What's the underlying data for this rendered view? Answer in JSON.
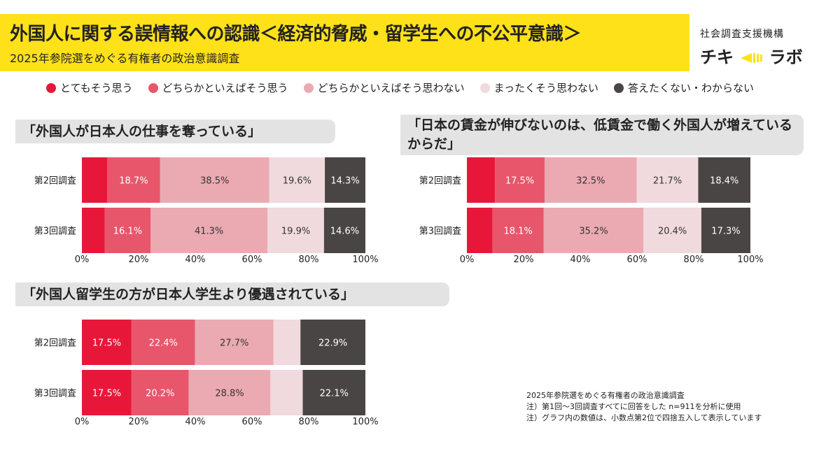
{
  "header": {
    "title": "外国人に関する誤情報への認識＜経済的脅威・留学生への不公平意識＞",
    "subtitle": "2025年参院選をめぐる有権者の政治意識調査"
  },
  "org": {
    "name": "社会調査支援機構",
    "brand_left": "チキ",
    "brand_right": "ラボ"
  },
  "colors": [
    "#e8173a",
    "#e8566b",
    "#ebaab2",
    "#f0dadd",
    "#4a4545"
  ],
  "legend": [
    "とてもそう思う",
    "どちらかといえばそう思う",
    "どちらかといえばそう思わない",
    "まったくそう思わない",
    "答えたくない・わからない"
  ],
  "chart_data": [
    {
      "type": "bar",
      "orientation": "horizontal",
      "stacked": true,
      "title": "「外国人が日本人の仕事を奪っている」",
      "categories": [
        "第2回調査",
        "第3回調査"
      ],
      "series": [
        {
          "name": "とてもそう思う",
          "values": [
            8.9,
            8.1
          ],
          "labels": [
            "",
            ""
          ]
        },
        {
          "name": "どちらかといえばそう思う",
          "values": [
            18.7,
            16.1
          ],
          "labels": [
            "18.7%",
            "16.1%"
          ]
        },
        {
          "name": "どちらかといえばそう思わない",
          "values": [
            38.5,
            41.3
          ],
          "labels": [
            "38.5%",
            "41.3%"
          ]
        },
        {
          "name": "まったくそう思わない",
          "values": [
            19.6,
            19.9
          ],
          "labels": [
            "19.6%",
            "19.9%"
          ]
        },
        {
          "name": "答えたくない・わからない",
          "values": [
            14.3,
            14.6
          ],
          "labels": [
            "14.3%",
            "14.6%"
          ]
        }
      ],
      "xlim": [
        0,
        100
      ],
      "xticks": [
        "0%",
        "20%",
        "40%",
        "60%",
        "80%",
        "100%"
      ]
    },
    {
      "type": "bar",
      "orientation": "horizontal",
      "stacked": true,
      "title": "「日本の賃金が伸びないのは、低賃金で働く外国人が増えているからだ」",
      "categories": [
        "第2回調査",
        "第3回調査"
      ],
      "series": [
        {
          "name": "とてもそう思う",
          "values": [
            9.9,
            9.0
          ],
          "labels": [
            "",
            ""
          ]
        },
        {
          "name": "どちらかといえばそう思う",
          "values": [
            17.5,
            18.1
          ],
          "labels": [
            "17.5%",
            "18.1%"
          ]
        },
        {
          "name": "どちらかといえばそう思わない",
          "values": [
            32.5,
            35.2
          ],
          "labels": [
            "32.5%",
            "35.2%"
          ]
        },
        {
          "name": "まったくそう思わない",
          "values": [
            21.7,
            20.4
          ],
          "labels": [
            "21.7%",
            "20.4%"
          ]
        },
        {
          "name": "答えたくない・わからない",
          "values": [
            18.4,
            17.3
          ],
          "labels": [
            "18.4%",
            "17.3%"
          ]
        }
      ],
      "xlim": [
        0,
        100
      ],
      "xticks": [
        "0%",
        "20%",
        "40%",
        "60%",
        "80%",
        "100%"
      ]
    },
    {
      "type": "bar",
      "orientation": "horizontal",
      "stacked": true,
      "title": "「外国人留学生の方が日本人学生より優遇されている」",
      "categories": [
        "第2回調査",
        "第3回調査"
      ],
      "series": [
        {
          "name": "とてもそう思う",
          "values": [
            17.5,
            17.5
          ],
          "labels": [
            "17.5%",
            "17.5%"
          ]
        },
        {
          "name": "どちらかといえばそう思う",
          "values": [
            22.4,
            20.2
          ],
          "labels": [
            "22.4%",
            "20.2%"
          ]
        },
        {
          "name": "どちらかといえばそう思わない",
          "values": [
            27.7,
            28.8
          ],
          "labels": [
            "27.7%",
            "28.8%"
          ]
        },
        {
          "name": "まったくそう思わない",
          "values": [
            9.5,
            11.4
          ],
          "labels": [
            "",
            ""
          ]
        },
        {
          "name": "答えたくない・わからない",
          "values": [
            22.9,
            22.1
          ],
          "labels": [
            "22.9%",
            "22.1%"
          ]
        }
      ],
      "xlim": [
        0,
        100
      ],
      "xticks": [
        "0%",
        "20%",
        "40%",
        "60%",
        "80%",
        "100%"
      ]
    }
  ],
  "notes": [
    "2025年参院選をめぐる有権者の政治意識調査",
    "注）第1回〜3回調査すべてに回答をした n=911を分析に使用",
    "注）グラフ内の数値は、小数点第2位で四捨五入して表示しています"
  ]
}
